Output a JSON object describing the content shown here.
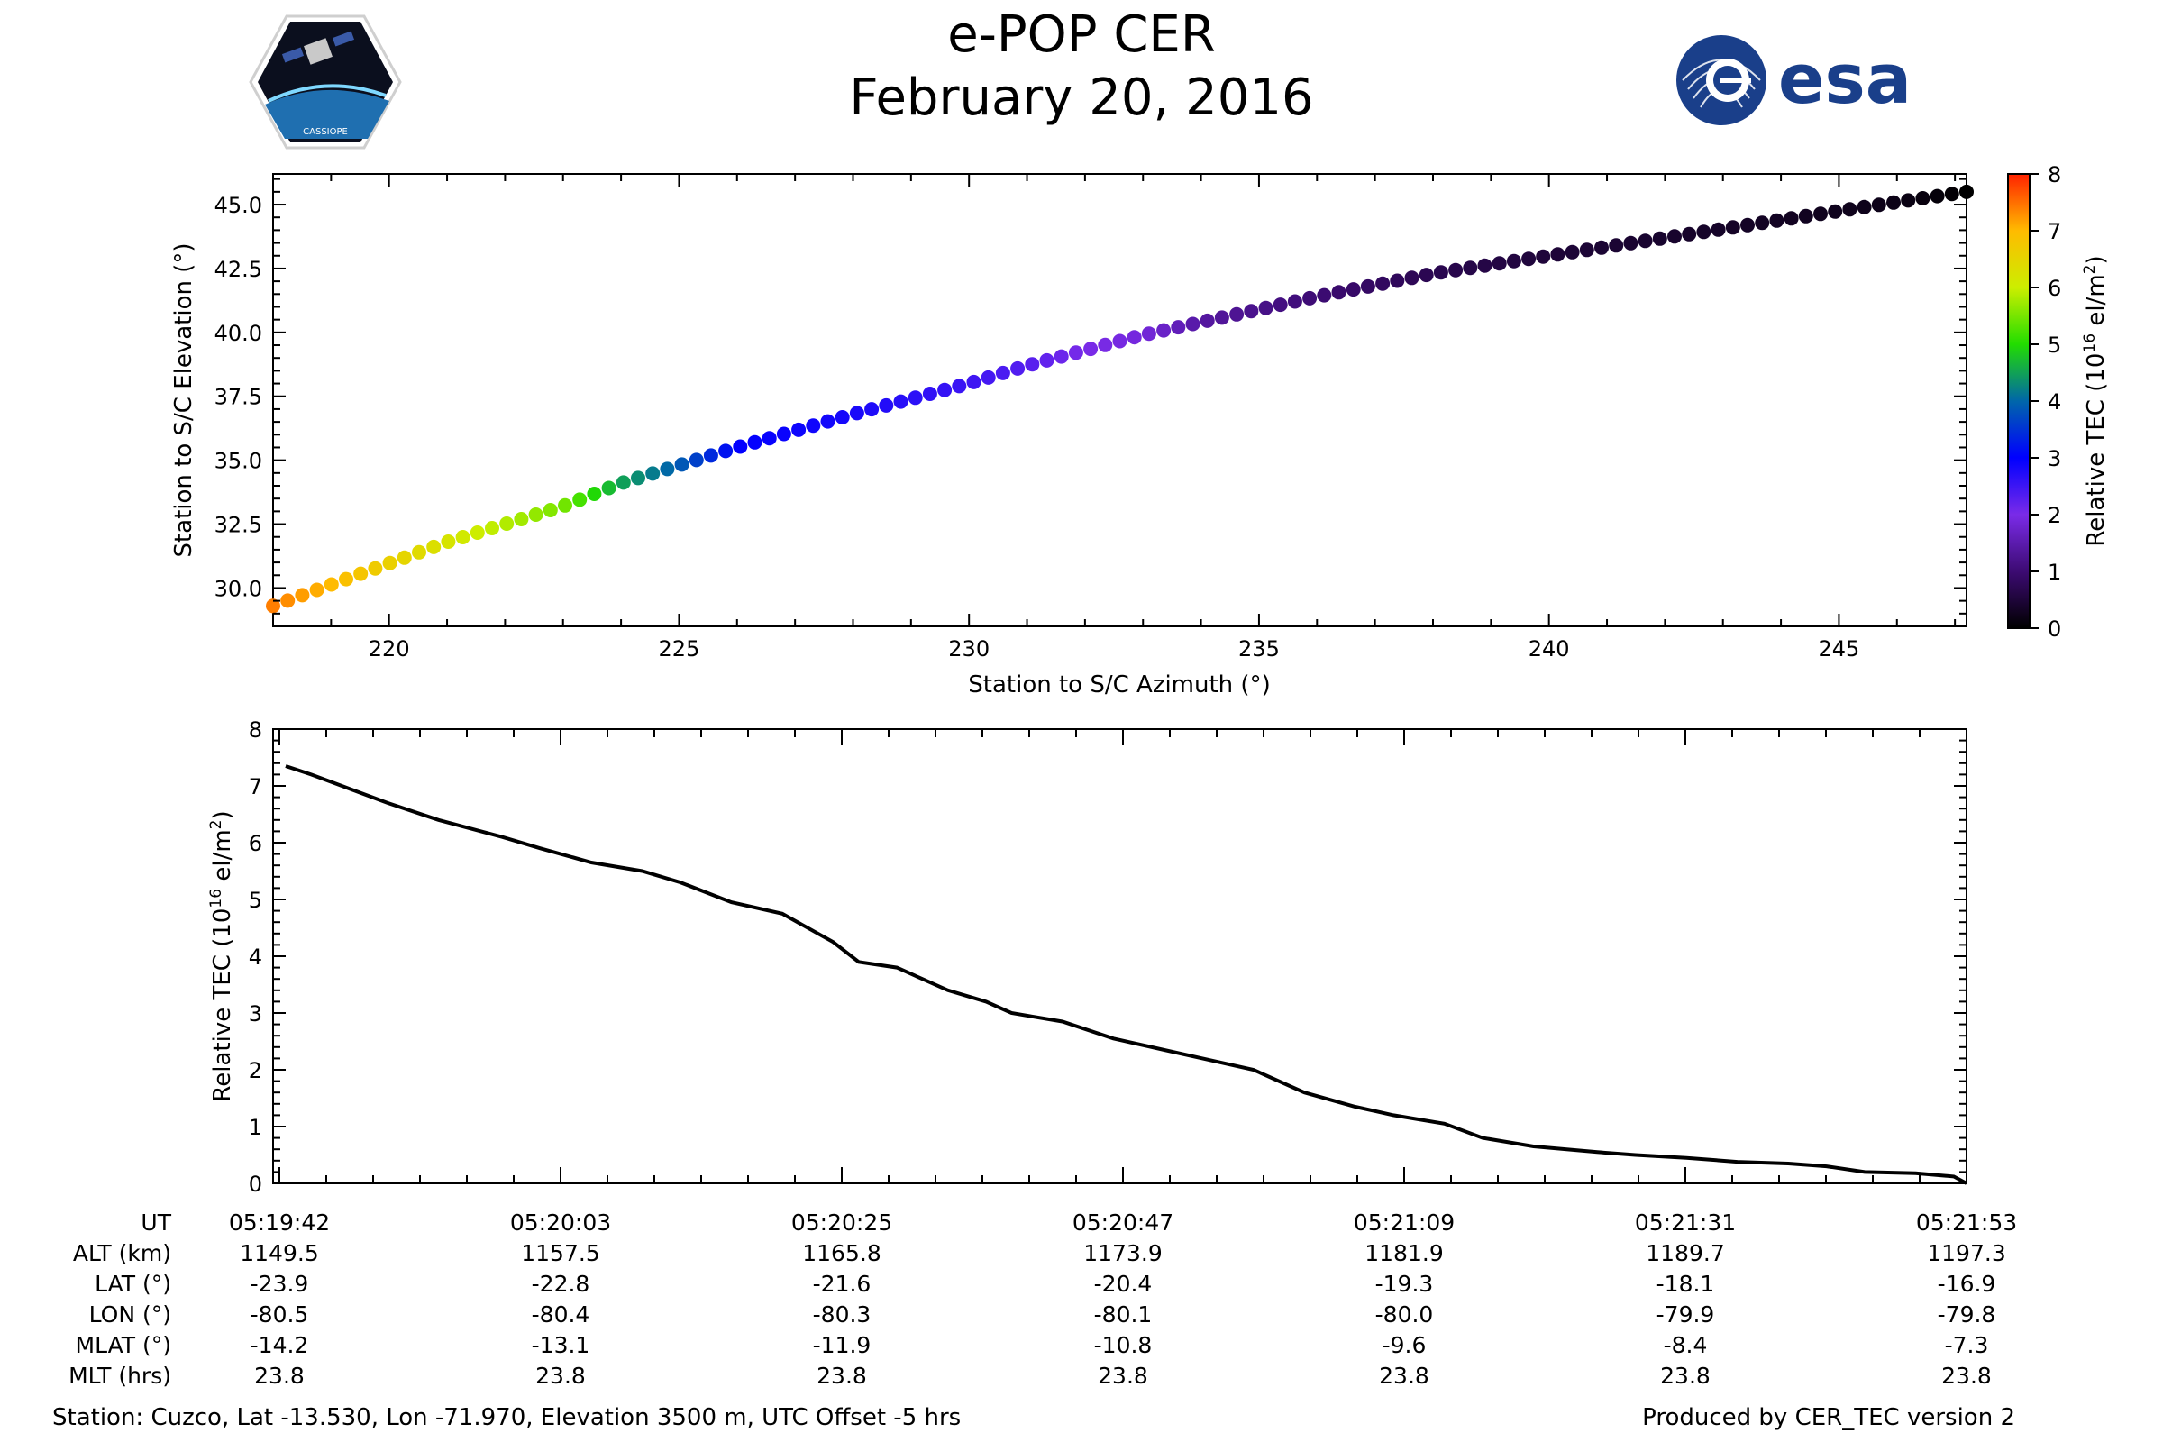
{
  "header": {
    "title": "e-POP CER",
    "date": "February 20, 2016",
    "logo_esa_text": "esa",
    "logo_cassiope_text": "CASSIOPE"
  },
  "chart_data": [
    {
      "type": "scatter",
      "xlabel": "Station to S/C Azimuth (°)",
      "ylabel": "Station to S/C Elevation (°)",
      "xlim": [
        218.0,
        247.2
      ],
      "ylim": [
        28.5,
        46.2
      ],
      "xticks": [
        220,
        225,
        230,
        235,
        240,
        245
      ],
      "yticks": [
        30.0,
        32.5,
        35.0,
        37.5,
        40.0,
        42.5,
        45.0
      ],
      "colorbar": {
        "label": "Relative TEC (10",
        "label_sup": "16",
        "label_suffix": " el/m",
        "label_sup2": "2",
        "label_end": ")",
        "min": 0,
        "max": 8,
        "ticks": [
          0,
          1,
          2,
          3,
          4,
          5,
          6,
          7,
          8
        ],
        "colormap": "gnuplot2-like (black → purple → blue → green → yellow → orange → red)"
      },
      "points": {
        "azimuth": [
          218.0,
          221.0,
          223.0,
          224.0,
          225.0,
          226.0,
          228.0,
          230.0,
          231.0,
          232.0,
          233.0,
          234.0,
          235.0,
          236.0,
          238.0,
          240.0,
          242.0,
          244.0,
          246.0,
          247.2
        ],
        "elevation": [
          29.3,
          31.8,
          33.2,
          34.1,
          34.8,
          35.5,
          36.8,
          38.0,
          38.7,
          39.3,
          39.9,
          40.4,
          40.9,
          41.4,
          42.3,
          43.0,
          43.7,
          44.4,
          45.1,
          45.5
        ],
        "tec": [
          7.4,
          6.2,
          5.5,
          4.5,
          3.9,
          3.0,
          2.8,
          2.5,
          2.3,
          2.0,
          1.9,
          1.4,
          1.2,
          1.0,
          0.7,
          0.5,
          0.4,
          0.3,
          0.2,
          0.0
        ]
      }
    },
    {
      "type": "line",
      "xlabel": "",
      "ylabel": "Relative TEC (10",
      "ylabel_sup": "16",
      "ylabel_suffix": " el/m",
      "ylabel_sup2": "2",
      "ylabel_end": ")",
      "xlim": [
        0,
        132
      ],
      "ylim": [
        0,
        8
      ],
      "yticks": [
        0,
        1,
        2,
        3,
        4,
        5,
        6,
        7,
        8
      ],
      "x_seconds": [
        0,
        2,
        5,
        8,
        12,
        17,
        20,
        24,
        28,
        31,
        35,
        39,
        43,
        45,
        48,
        50,
        52,
        55,
        57,
        61,
        65,
        69,
        72,
        76,
        80,
        84,
        87,
        91,
        94,
        98,
        103,
        106,
        110,
        114,
        118,
        121,
        124,
        128,
        131,
        132
      ],
      "tec": [
        7.35,
        7.2,
        6.95,
        6.7,
        6.4,
        6.1,
        5.9,
        5.65,
        5.5,
        5.3,
        4.95,
        4.75,
        4.25,
        3.9,
        3.8,
        3.6,
        3.4,
        3.2,
        3.0,
        2.85,
        2.55,
        2.35,
        2.2,
        2.0,
        1.6,
        1.35,
        1.2,
        1.05,
        0.8,
        0.65,
        0.55,
        0.5,
        0.45,
        0.38,
        0.35,
        0.3,
        0.2,
        0.18,
        0.12,
        0.0
      ]
    }
  ],
  "info_table": {
    "row_labels": [
      "UT",
      "ALT (km)",
      "LAT (°)",
      "LON (°)",
      "MLAT (°)",
      "MLT (hrs)"
    ],
    "columns": [
      {
        "ut": "05:19:42",
        "alt": "1149.5",
        "lat": "-23.9",
        "lon": "-80.5",
        "mlat": "-14.2",
        "mlt": "23.8"
      },
      {
        "ut": "05:20:03",
        "alt": "1157.5",
        "lat": "-22.8",
        "lon": "-80.4",
        "mlat": "-13.1",
        "mlt": "23.8"
      },
      {
        "ut": "05:20:25",
        "alt": "1165.8",
        "lat": "-21.6",
        "lon": "-80.3",
        "mlat": "-11.9",
        "mlt": "23.8"
      },
      {
        "ut": "05:20:47",
        "alt": "1173.9",
        "lat": "-20.4",
        "lon": "-80.1",
        "mlat": "-10.8",
        "mlt": "23.8"
      },
      {
        "ut": "05:21:09",
        "alt": "1181.9",
        "lat": "-19.3",
        "lon": "-80.0",
        "mlat": "-9.6",
        "mlt": "23.8"
      },
      {
        "ut": "05:21:31",
        "alt": "1189.7",
        "lat": "-18.1",
        "lon": "-79.9",
        "mlat": "-8.4",
        "mlt": "23.8"
      },
      {
        "ut": "05:21:53",
        "alt": "1197.3",
        "lat": "-16.9",
        "lon": "-79.8",
        "mlat": "-7.3",
        "mlt": "23.8"
      }
    ]
  },
  "footer": {
    "station": "Station: Cuzco, Lat -13.530, Lon -71.970, Elevation 3500 m, UTC Offset -5 hrs",
    "producer": "Produced by CER_TEC version 2"
  }
}
